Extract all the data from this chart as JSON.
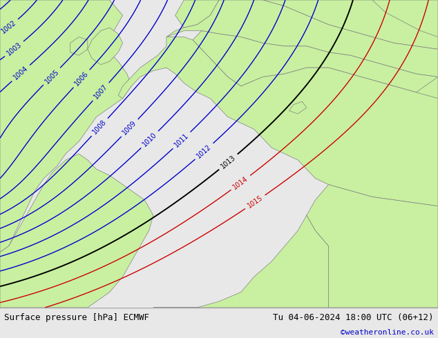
{
  "title_left": "Surface pressure [hPa] ECMWF",
  "title_right": "Tu 04-06-2024 18:00 UTC (06+12)",
  "credit": "©weatheronline.co.uk",
  "land_color": "#c8f0a0",
  "sea_color": "#d0d0d8",
  "contour_color_blue": "#0000cc",
  "contour_color_black": "#000000",
  "contour_color_red": "#cc0000",
  "bottom_bar_color": "#e8e8e8",
  "label_fontsize": 9,
  "credit_fontsize": 8,
  "figwidth": 6.34,
  "figheight": 4.9
}
